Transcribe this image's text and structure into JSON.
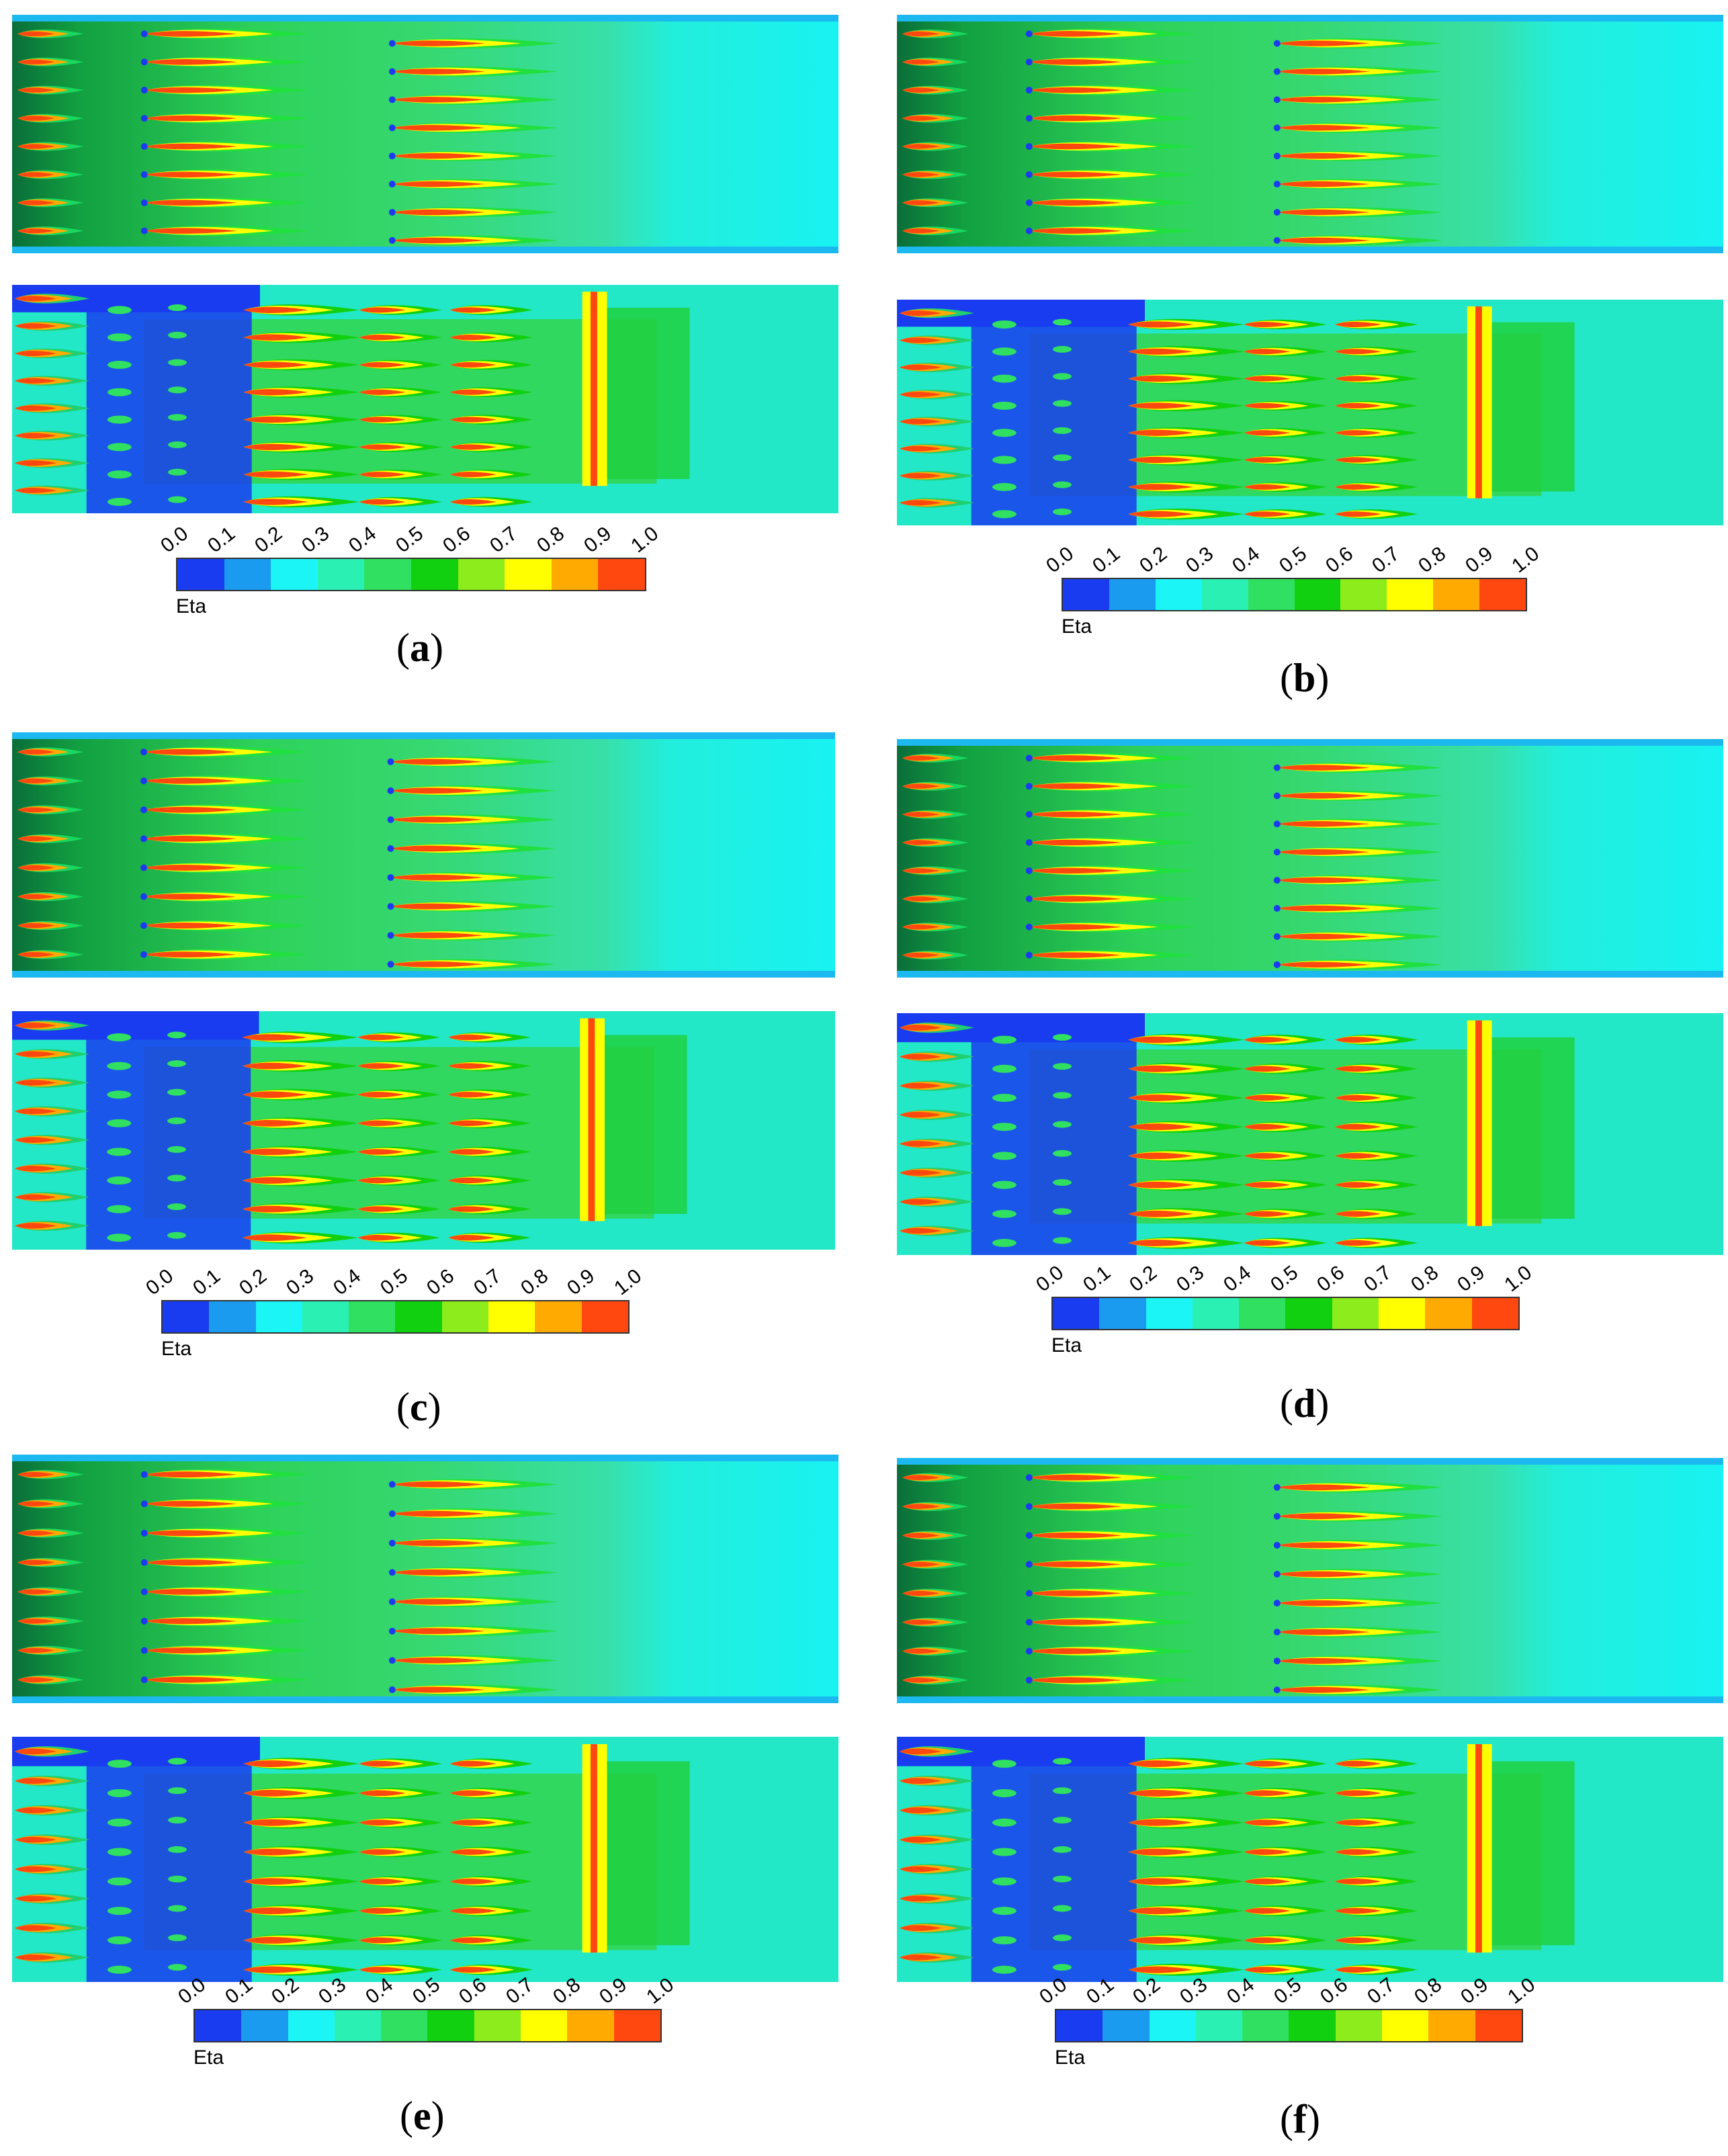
{
  "colorbar": {
    "label": "Eta",
    "ticks": [
      "0.0",
      "0.1",
      "0.2",
      "0.3",
      "0.4",
      "0.5",
      "0.6",
      "0.7",
      "0.8",
      "0.9",
      "1.0"
    ],
    "colors": [
      "#1a3cf0",
      "#1a9bf0",
      "#1cf5f5",
      "#2af0b4",
      "#30e060",
      "#10d010",
      "#8cec1c",
      "#ffff00",
      "#ffaa00",
      "#ff4810"
    ]
  },
  "panels": [
    {
      "id": "a",
      "caption_open": "(",
      "caption_letter": "a",
      "caption_close": ")"
    },
    {
      "id": "b",
      "caption_open": "(",
      "caption_letter": "b",
      "caption_close": ")"
    },
    {
      "id": "c",
      "caption_open": "(",
      "caption_letter": "c",
      "caption_close": ")"
    },
    {
      "id": "d",
      "caption_open": "(",
      "caption_letter": "d",
      "caption_close": ")"
    },
    {
      "id": "e",
      "caption_open": "(",
      "caption_letter": "e",
      "caption_close": ")"
    },
    {
      "id": "f",
      "caption_open": "(",
      "caption_letter": "f",
      "caption_close": ")"
    }
  ]
}
